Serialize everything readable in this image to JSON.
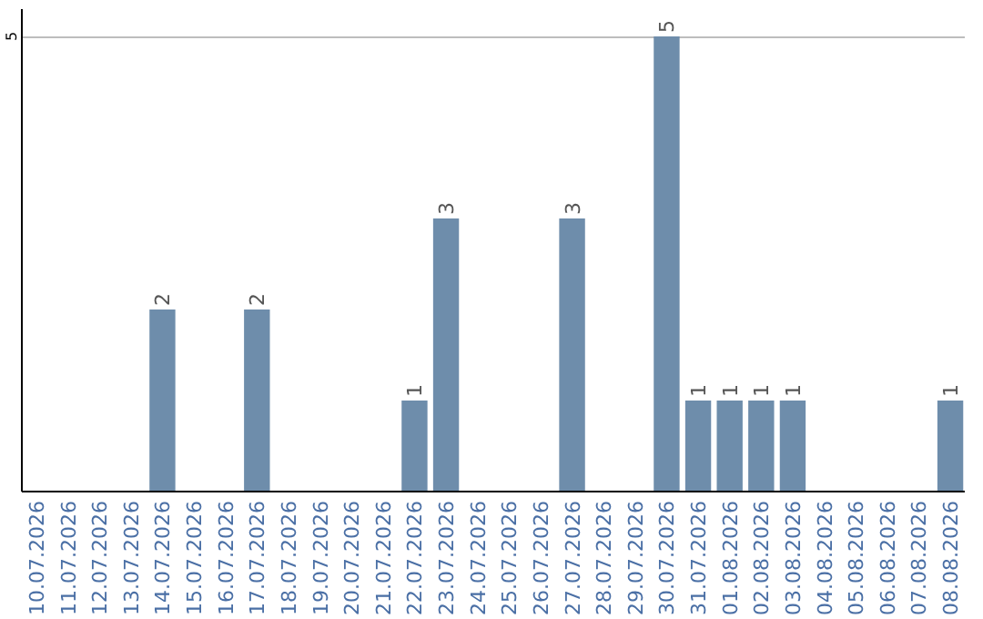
{
  "chart_data": {
    "type": "bar",
    "categories": [
      "10.07.2026",
      "11.07.2026",
      "12.07.2026",
      "13.07.2026",
      "14.07.2026",
      "15.07.2026",
      "16.07.2026",
      "17.07.2026",
      "18.07.2026",
      "19.07.2026",
      "20.07.2026",
      "21.07.2026",
      "22.07.2026",
      "23.07.2026",
      "24.07.2026",
      "25.07.2026",
      "26.07.2026",
      "27.07.2026",
      "28.07.2026",
      "29.07.2026",
      "30.07.2026",
      "31.07.2026",
      "01.08.2026",
      "02.08.2026",
      "03.08.2026",
      "04.08.2026",
      "05.08.2026",
      "06.08.2026",
      "07.08.2026",
      "08.08.2026"
    ],
    "values": [
      0,
      0,
      0,
      0,
      2,
      0,
      0,
      2,
      0,
      0,
      0,
      0,
      1,
      3,
      0,
      0,
      0,
      3,
      0,
      0,
      5,
      1,
      1,
      1,
      1,
      0,
      0,
      0,
      0,
      1
    ],
    "value_labels": [
      null,
      null,
      null,
      null,
      "2",
      null,
      null,
      "2",
      null,
      null,
      null,
      null,
      "1",
      "3",
      null,
      null,
      null,
      "3",
      null,
      null,
      "5",
      "1",
      "1",
      "1",
      "1",
      null,
      null,
      null,
      null,
      "1"
    ],
    "color": "#6e8dab",
    "ylim": [
      0,
      5.3
    ],
    "yticks": [
      5
    ],
    "grid": "y"
  }
}
